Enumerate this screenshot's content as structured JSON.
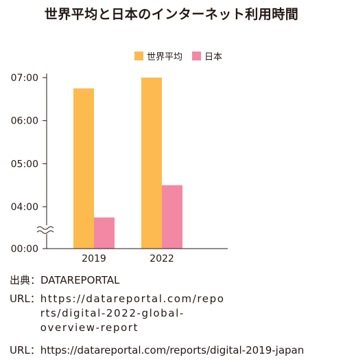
{
  "chart_data": {
    "type": "bar",
    "title": "世界平均と日本のインターネット利用時間",
    "categories": [
      "2019",
      "2022"
    ],
    "series": [
      {
        "name": "世界平均",
        "values": [
          "06:45",
          "07:00"
        ],
        "minutes": [
          405,
          420
        ],
        "color": "#FDBA4E"
      },
      {
        "name": "日本",
        "values": [
          "03:45",
          "04:30"
        ],
        "minutes": [
          225,
          270
        ],
        "color": "#F288A4"
      }
    ],
    "y_ticks": [
      "00:00",
      "04:00",
      "05:00",
      "06:00",
      "07:00"
    ],
    "y_axis_break": true,
    "ylim": [
      "03:00",
      "07:00"
    ],
    "legend_position": "top-right",
    "grid": false
  },
  "sources": {
    "label_source": "出典：",
    "source_name": "DATAREPORTAL",
    "label_url": "URL：",
    "url1": "https://datareportal.com/reports/digital-2022-global-overview-report",
    "url2": "https://datareportal.com/reports/digital-2019-japan"
  }
}
